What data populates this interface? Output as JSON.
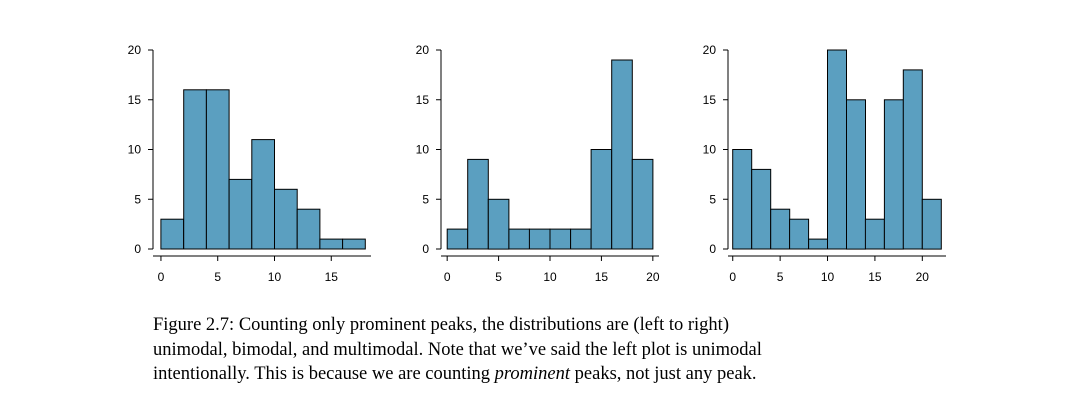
{
  "chart_data": [
    {
      "type": "bar",
      "bin_edges": [
        0,
        2,
        4,
        6,
        8,
        10,
        12,
        14,
        16,
        18
      ],
      "values": [
        3,
        16,
        16,
        7,
        11,
        6,
        4,
        1,
        1
      ],
      "ylim": [
        0,
        20
      ],
      "yticks": [
        0,
        5,
        10,
        15,
        20
      ],
      "xlim": [
        -0.7,
        18.5
      ],
      "xticks": [
        0,
        5,
        10,
        15
      ],
      "title": "",
      "xlabel": "",
      "ylabel": ""
    },
    {
      "type": "bar",
      "bin_edges": [
        0,
        2,
        4,
        6,
        8,
        10,
        12,
        14,
        16,
        18,
        20
      ],
      "values": [
        2,
        9,
        5,
        2,
        2,
        2,
        2,
        10,
        19,
        9
      ],
      "ylim": [
        0,
        20
      ],
      "yticks": [
        0,
        5,
        10,
        15,
        20
      ],
      "xlim": [
        -0.6,
        20.6
      ],
      "xticks": [
        0,
        5,
        10,
        15,
        20
      ],
      "title": "",
      "xlabel": "",
      "ylabel": ""
    },
    {
      "type": "bar",
      "bin_edges": [
        0,
        2,
        4,
        6,
        8,
        10,
        12,
        14,
        16,
        18,
        20,
        22
      ],
      "values": [
        10,
        8,
        4,
        3,
        1,
        20,
        15,
        3,
        15,
        18,
        5
      ],
      "ylim": [
        0,
        20
      ],
      "yticks": [
        0,
        5,
        10,
        15,
        20
      ],
      "xlim": [
        -0.5,
        22.5
      ],
      "xticks": [
        0,
        5,
        10,
        15,
        20
      ],
      "title": "",
      "xlabel": "",
      "ylabel": ""
    }
  ],
  "caption": {
    "line1": "Figure 2.7: Counting only prominent peaks, the distributions are (left to right)",
    "line2": "unimodal, bimodal, and multimodal. Note that we’ve said the left plot is unimodal",
    "line3_pre": "intentionally. This is because we are counting ",
    "line3_em": "prominent",
    "line3_post": " peaks, not just any peak."
  },
  "colors": {
    "bar_fill": "#5b9fc0",
    "bar_stroke": "#000000",
    "axis": "#000000"
  }
}
